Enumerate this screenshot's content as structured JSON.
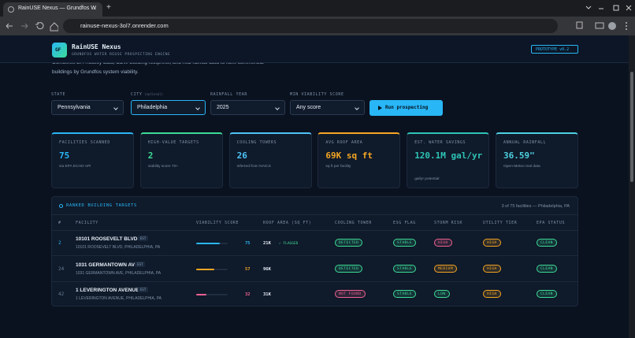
{
  "browser": {
    "tab_title": "RainUSE Nexus — Grundfos W",
    "url": "rainuse-nexus-3ol7.onrender.com"
  },
  "header": {
    "logo": "GF",
    "title": "RainUSE Nexus",
    "subtitle": "GRUNDFOS WATER REUSE PROSPECTING ENGINE",
    "badge": "PROTOTYPE v0.2"
  },
  "intro": [
    "Combines EPA facility data, CDW building footprints, and real rainfall data to rank commercial",
    "buildings by Grundfos system viability."
  ],
  "filters": [
    {
      "label": "STATE",
      "value": "Pennsylvania"
    },
    {
      "label": "CITY",
      "hint": "(optional)",
      "value": "Philadelphia"
    },
    {
      "label": "RAINFALL YEAR",
      "value": "2025"
    },
    {
      "label": "MIN VIABILITY SCORE",
      "value": "Any score"
    }
  ],
  "run_button": "Run prospecting",
  "stats": [
    {
      "label": "FACILITIES SCANNED",
      "value": 75,
      "note": "via EPA ECHO API",
      "color": "#29b6f6"
    },
    {
      "label": "HIGH-VALUE TARGETS",
      "value": 2,
      "note": "viability score 70+",
      "color": "#3ddc97"
    },
    {
      "label": "COOLING TOWERS",
      "value": 26,
      "note": "inferred from NAICS",
      "color": "#4fc3f7"
    },
    {
      "label": "AVG ROOF AREA",
      "value": "69K sq ft",
      "note": "sq ft per facility",
      "color": "#f5a623"
    },
    {
      "label": "EST. WATER SAVINGS",
      "value": "120.1M gal/yr",
      "note": "gal/yr potential",
      "color": "#2ec4b6"
    },
    {
      "label": "ANNUAL RAINFALL",
      "value": "36.59\"",
      "note": "Open-Meteo real data",
      "color": "#4dd0e1"
    }
  ],
  "table": {
    "title": "RANKED BUILDING TARGETS",
    "summary": "3 of 75 facilities — Philadelphia, PA",
    "headers": [
      "#",
      "FACILITY",
      "VIABILITY SCORE",
      "ROOF AREA (SQ FT)",
      "COOLING TOWER",
      "ESG FLAG",
      "STORM RISK",
      "UTILITY TIER",
      "EPA STATUS"
    ],
    "rows": [
      {
        "rank": 2,
        "name": "10101 ROOSEVELT BLVD",
        "tag": "EST",
        "address": "10101 ROOSEVELT BLVD, PHILADELPHIA, PA",
        "score": 75,
        "score_color": "#29b6f6",
        "roof": "21K",
        "roof_flag": "✓ FLAGGED",
        "cooling": {
          "text": "DETECTED",
          "color": "#3ddc97"
        },
        "esg": {
          "text": "STABLE",
          "color": "#3ddc97"
        },
        "storm": {
          "text": "HIGH",
          "color": "#f06292"
        },
        "utility": {
          "text": "HIGH",
          "color": "#f5a623"
        },
        "epa": {
          "text": "CLEAN",
          "color": "#3ddc97"
        }
      },
      {
        "rank": 24,
        "name": "1031 GERMANTOWN AVE",
        "tag": "EST",
        "address": "1031 GERMANTOWN AVE, PHILADELPHIA, PA",
        "score": 57,
        "score_color": "#f5a623",
        "roof": "96K",
        "cooling": {
          "text": "DETECTED",
          "color": "#3ddc97"
        },
        "esg": {
          "text": "STABLE",
          "color": "#3ddc97"
        },
        "storm": {
          "text": "MEDIUM",
          "color": "#f5a623"
        },
        "utility": {
          "text": "HIGH",
          "color": "#f5a623"
        },
        "epa": {
          "text": "CLEAN",
          "color": "#3ddc97"
        }
      },
      {
        "rank": 42,
        "name": "1 LEVERINGTON AVENUE",
        "tag": "EST",
        "address": "1 LEVERINGTON AVENUE, PHILADELPHIA, PA",
        "score": 32,
        "score_color": "#f06292",
        "roof": "31K",
        "cooling": {
          "text": "NOT FOUND",
          "color": "#f06292"
        },
        "esg": {
          "text": "STABLE",
          "color": "#3ddc97"
        },
        "storm": {
          "text": "LOW",
          "color": "#3ddc97"
        },
        "utility": {
          "text": "HIGH",
          "color": "#f5a623"
        },
        "epa": {
          "text": "CLEAN",
          "color": "#3ddc97"
        }
      }
    ]
  }
}
